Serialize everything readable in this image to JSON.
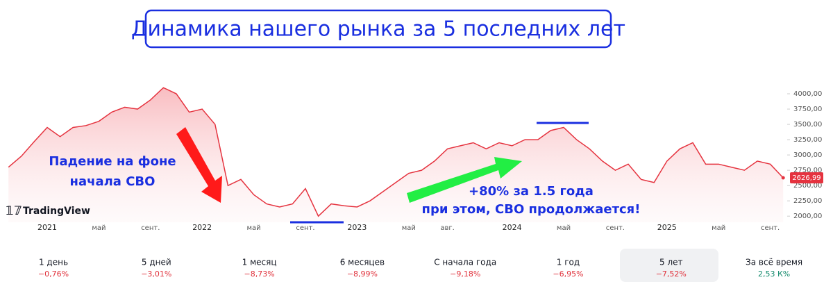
{
  "header": {
    "title": "Динамика нашего рынка за 5 последних лет"
  },
  "chart_data": {
    "type": "area",
    "categories": [
      null,
      null,
      null,
      "2021",
      null,
      null,
      null,
      "май",
      null,
      null,
      null,
      "сент.",
      null,
      null,
      null,
      "2022",
      null,
      null,
      null,
      "май",
      null,
      null,
      null,
      "сент.",
      null,
      null,
      null,
      "2023",
      null,
      null,
      null,
      "май",
      null,
      null,
      "авг.",
      null,
      null,
      null,
      null,
      "2024",
      null,
      null,
      null,
      "май",
      null,
      null,
      null,
      "сент.",
      null,
      null,
      null,
      "2025",
      null,
      null,
      null,
      "май",
      null,
      null,
      null,
      "сент.",
      null
    ],
    "series": [
      {
        "color": "#e5333f",
        "values": [
          2800,
          2980,
          3220,
          3450,
          3300,
          3450,
          3480,
          3550,
          3700,
          3780,
          3750,
          3900,
          4100,
          4000,
          3700,
          3750,
          3500,
          2500,
          2600,
          2350,
          2200,
          2150,
          2200,
          2450,
          2000,
          2200,
          2170,
          2150,
          2250,
          2400,
          2550,
          2700,
          2750,
          2900,
          3100,
          3150,
          3200,
          3100,
          3200,
          3150,
          3250,
          3250,
          3400,
          3450,
          3250,
          3100,
          2900,
          2750,
          2850,
          2600,
          2550,
          2900,
          3100,
          3200,
          2850,
          2850,
          2800,
          2750,
          2900,
          2850,
          2626.99
        ],
        "value_labels": [
          null,
          null,
          null,
          null,
          null,
          null,
          null,
          null,
          null,
          null,
          null,
          null,
          null,
          null,
          null,
          null,
          null,
          null,
          null,
          null,
          null,
          null,
          null,
          null,
          null,
          null,
          null,
          null,
          null,
          null,
          null,
          null,
          null,
          null,
          null,
          null,
          null,
          null,
          null,
          null,
          null,
          null,
          null,
          null,
          null,
          null,
          null,
          null,
          null,
          null,
          null,
          null,
          null,
          null,
          null,
          null,
          null,
          null,
          null,
          null,
          "2626,99"
        ]
      }
    ],
    "ylim": [
      1900,
      4300
    ],
    "yticks": [
      {
        "value": 2000,
        "label": "2000,00"
      },
      {
        "value": 2250,
        "label": "2250,00"
      },
      {
        "value": 2500,
        "label": "2500,00"
      },
      {
        "value": 2750,
        "label": "2750,00"
      },
      {
        "value": 3000,
        "label": "3000,00"
      },
      {
        "value": 3250,
        "label": "3250,00"
      },
      {
        "value": 3500,
        "label": "3500,00"
      },
      {
        "value": 3750,
        "label": "3750,00"
      },
      {
        "value": 4000,
        "label": "4000,00"
      }
    ],
    "grid": false,
    "annotations": [
      "Падение на фоне",
      "начала СВО",
      "+80% за 1.5 года",
      "при этом, СВО продолжается!"
    ],
    "watermark": "TradingView"
  },
  "periods": [
    {
      "label": "1 день",
      "change": "−0,76%"
    },
    {
      "label": "5 дней",
      "change": "−3,01%"
    },
    {
      "label": "1 месяц",
      "change": "−8,73%"
    },
    {
      "label": "6 месяцев",
      "change": "−8,99%"
    },
    {
      "label": "С начала года",
      "change": "−9,18%"
    },
    {
      "label": "1 год",
      "change": "−6,95%"
    },
    {
      "label": "5 лет",
      "change": "−7,52%"
    },
    {
      "label": "За всё время",
      "change": "2,53 К%"
    }
  ]
}
